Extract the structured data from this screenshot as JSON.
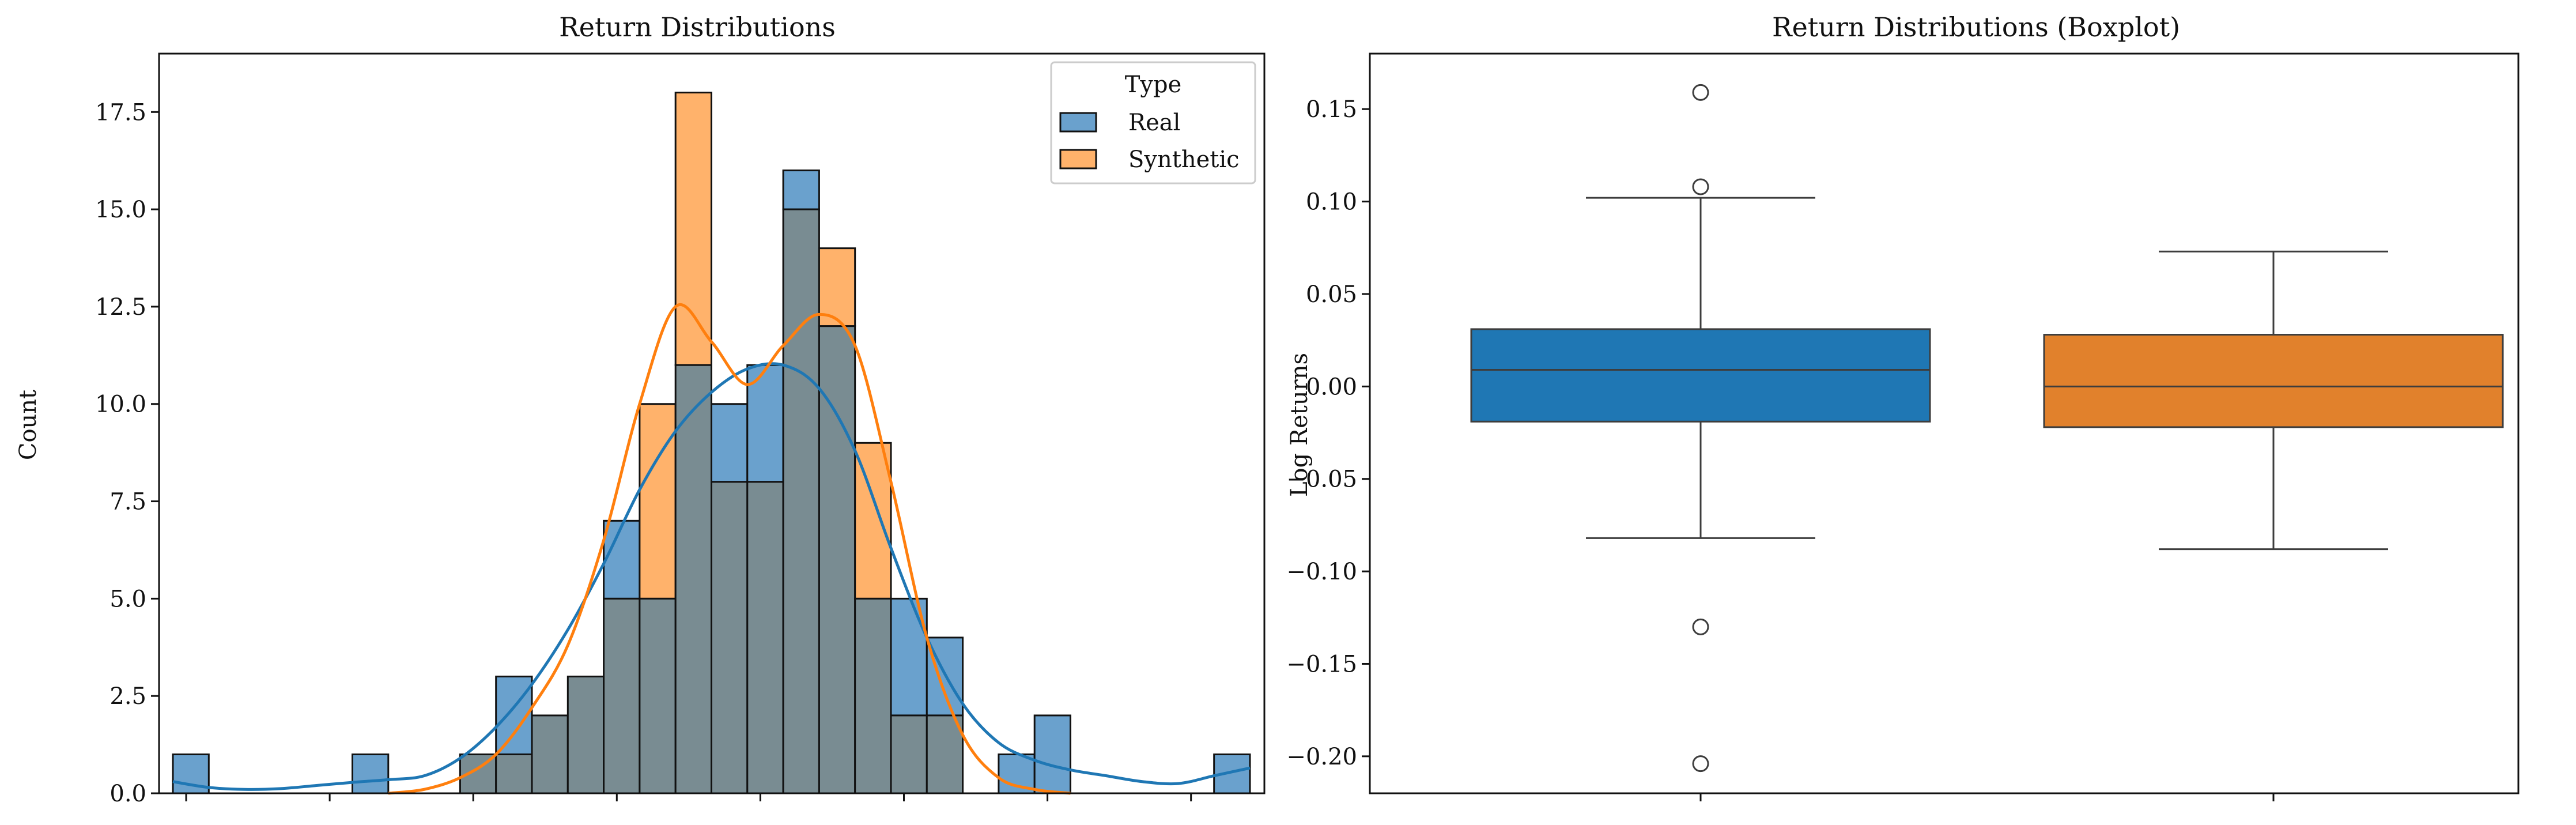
{
  "colors": {
    "real": "#1f77b4",
    "synthetic": "#ff7f0e",
    "real_fill": "#6aa1cd",
    "synthetic_fill": "#ffb26b",
    "overlap_fill": "#798c92"
  },
  "chart_data": [
    {
      "type": "histogram",
      "title": "Return Distributions",
      "xlabel": "",
      "ylabel": "Count",
      "ylim": [
        0,
        19
      ],
      "yticks": [
        "0.0",
        "2.5",
        "5.0",
        "7.5",
        "10.0",
        "12.5",
        "15.0",
        "17.5"
      ],
      "ytick_values": [
        0,
        2.5,
        5,
        7.5,
        10,
        12.5,
        15,
        17.5
      ],
      "xtick_count": 8,
      "bin_count": 30,
      "series": [
        {
          "name": "Real",
          "counts": [
            1,
            0,
            0,
            0,
            0,
            1,
            0,
            0,
            1,
            3,
            2,
            3,
            7,
            5,
            11,
            10,
            11,
            16,
            12,
            5,
            5,
            4,
            0,
            1,
            2,
            0,
            0,
            0,
            0,
            1
          ]
        },
        {
          "name": "Synthetic",
          "counts": [
            0,
            0,
            0,
            0,
            0,
            0,
            0,
            0,
            1,
            1,
            2,
            3,
            5,
            10,
            18,
            8,
            8,
            15,
            14,
            9,
            2,
            2,
            0,
            0,
            0,
            0,
            0,
            0,
            0,
            0
          ]
        }
      ],
      "kde": [
        {
          "name": "Real",
          "points": [
            [
              0,
              0.3
            ],
            [
              1,
              0.15
            ],
            [
              2,
              0.1
            ],
            [
              3,
              0.12
            ],
            [
              4,
              0.2
            ],
            [
              5,
              0.28
            ],
            [
              6,
              0.35
            ],
            [
              7,
              0.45
            ],
            [
              8,
              0.9
            ],
            [
              9,
              1.7
            ],
            [
              10,
              2.8
            ],
            [
              11,
              4.2
            ],
            [
              12,
              5.9
            ],
            [
              13,
              7.8
            ],
            [
              14,
              9.3
            ],
            [
              15,
              10.3
            ],
            [
              16,
              10.9
            ],
            [
              17,
              11
            ],
            [
              18,
              10.4
            ],
            [
              19,
              8.8
            ],
            [
              20,
              6.3
            ],
            [
              21,
              4.0
            ],
            [
              22,
              2.3
            ],
            [
              23,
              1.3
            ],
            [
              24,
              0.85
            ],
            [
              25,
              0.6
            ],
            [
              26,
              0.45
            ],
            [
              27,
              0.3
            ],
            [
              28,
              0.25
            ],
            [
              29,
              0.45
            ],
            [
              30,
              0.65
            ]
          ]
        },
        {
          "name": "Synthetic",
          "points": [
            [
              6,
              0
            ],
            [
              7,
              0.1
            ],
            [
              8,
              0.4
            ],
            [
              9,
              1.0
            ],
            [
              10,
              2.2
            ],
            [
              11,
              3.8
            ],
            [
              12,
              6.5
            ],
            [
              13,
              10.0
            ],
            [
              14,
              12.5
            ],
            [
              15,
              11.6
            ],
            [
              16,
              10.5
            ],
            [
              17,
              11.5
            ],
            [
              18,
              12.3
            ],
            [
              19,
              11.5
            ],
            [
              20,
              8.0
            ],
            [
              21,
              4.0
            ],
            [
              22,
              1.5
            ],
            [
              23,
              0.4
            ],
            [
              24,
              0.1
            ],
            [
              25,
              0
            ]
          ]
        }
      ],
      "legend": {
        "title": "Type",
        "entries": [
          "Real",
          "Synthetic"
        ],
        "placement": "top-right"
      }
    },
    {
      "type": "boxplot",
      "title": "Return Distributions (Boxplot)",
      "xlabel": "",
      "ylabel": "Log Returns",
      "ylim": [
        -0.22,
        0.18
      ],
      "yticks": [
        "0.15",
        "0.10",
        "0.05",
        "0.00",
        "−0.05",
        "−0.10",
        "−0.15",
        "−0.20"
      ],
      "ytick_values": [
        0.15,
        0.1,
        0.05,
        0.0,
        -0.05,
        -0.1,
        -0.15,
        -0.2
      ],
      "boxes": [
        {
          "name": "Real",
          "whisker_low": -0.082,
          "q1": -0.019,
          "median": 0.009,
          "q3": 0.031,
          "whisker_high": 0.102,
          "outliers": [
            0.159,
            0.108,
            -0.13,
            -0.204
          ]
        },
        {
          "name": "Synthetic",
          "whisker_low": -0.088,
          "q1": -0.022,
          "median": 0.0,
          "q3": 0.028,
          "whisker_high": 0.073,
          "outliers": []
        }
      ]
    }
  ]
}
